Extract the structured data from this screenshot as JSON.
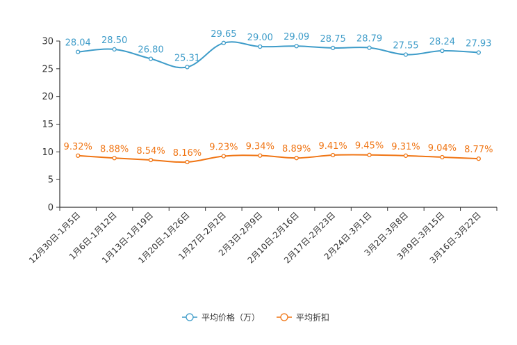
{
  "chart_data": {
    "type": "line",
    "title": "",
    "xlabel": "",
    "ylabel": "",
    "ylim": [
      0,
      30
    ],
    "yticks": [
      0,
      5,
      10,
      15,
      20,
      25,
      30
    ],
    "grid": false,
    "legend_position": "bottom",
    "categories": [
      "12月30日-1月5日",
      "1月6日-1月12日",
      "1月13日-1月19日",
      "1月20日-1月26日",
      "1月27日-2月2日",
      "2月3日-2月9日",
      "2月10日-2月16日",
      "2月17日-2月23日",
      "2月24日-3月1日",
      "3月2日-3月8日",
      "3月9日-3月15日",
      "3月16日-3月22日"
    ],
    "series": [
      {
        "name": "平均价格（万）",
        "color": "#3e9cc9",
        "values": [
          28.04,
          28.5,
          26.8,
          25.31,
          29.65,
          29.0,
          29.09,
          28.75,
          28.79,
          27.55,
          28.24,
          27.93
        ],
        "labels": [
          "28.04",
          "28.50",
          "26.80",
          "25.31",
          "29.65",
          "29.00",
          "29.09",
          "28.75",
          "28.79",
          "27.55",
          "28.24",
          "27.93"
        ]
      },
      {
        "name": "平均折扣",
        "color": "#f07514",
        "values": [
          9.32,
          8.88,
          8.54,
          8.16,
          9.23,
          9.34,
          8.89,
          9.41,
          9.45,
          9.31,
          9.04,
          8.77
        ],
        "labels": [
          "9.32%",
          "8.88%",
          "8.54%",
          "8.16%",
          "9.23%",
          "9.34%",
          "8.89%",
          "9.41%",
          "9.45%",
          "9.31%",
          "9.04%",
          "8.77%"
        ]
      }
    ]
  }
}
